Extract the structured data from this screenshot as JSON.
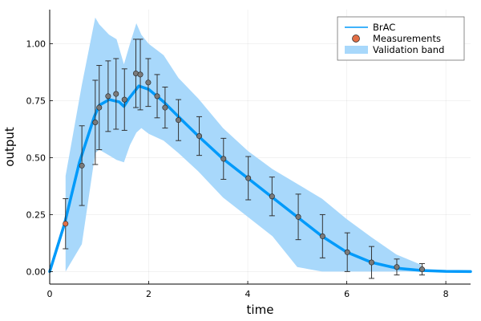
{
  "chart_data": {
    "type": "line",
    "xlabel": "time",
    "ylabel": "output",
    "xlim": [
      0,
      8.5
    ],
    "ylim": [
      -0.055,
      1.15
    ],
    "x_ticks": [
      0,
      2,
      4,
      6,
      8
    ],
    "x_tick_labels": [
      "0",
      "2",
      "4",
      "6",
      "8"
    ],
    "y_ticks": [
      0.0,
      0.25,
      0.5,
      0.75,
      1.0
    ],
    "y_tick_labels": [
      "0.00",
      "0.25",
      "0.50",
      "0.75",
      "1.00"
    ],
    "grid": true,
    "legend_position": "top-right",
    "colors": {
      "line": "#009AFA",
      "band": "#A8D8FB",
      "marker_first": "#E26F46",
      "marker": "#7A7A7A",
      "errorbar": "#333333"
    },
    "series": [
      {
        "name": "BrAC",
        "kind": "line",
        "x": [
          0,
          0.3,
          0.6,
          0.9,
          1.0,
          1.2,
          1.4,
          1.5,
          1.6,
          1.8,
          2.0,
          2.3,
          2.6,
          3.0,
          3.5,
          4.0,
          4.5,
          5.0,
          5.5,
          6.0,
          6.5,
          7.0,
          7.5,
          8.0,
          8.5
        ],
        "y": [
          0.0,
          0.21,
          0.48,
          0.68,
          0.73,
          0.755,
          0.745,
          0.725,
          0.76,
          0.815,
          0.8,
          0.745,
          0.68,
          0.595,
          0.495,
          0.41,
          0.325,
          0.24,
          0.155,
          0.085,
          0.04,
          0.015,
          0.005,
          0.001,
          0.0
        ]
      },
      {
        "name": "Measurements",
        "kind": "scatter",
        "x": [
          0.32,
          0.65,
          0.92,
          1.0,
          1.18,
          1.34,
          1.51,
          1.74,
          1.83,
          1.99,
          2.17,
          2.33,
          2.6,
          3.02,
          3.51,
          4.01,
          4.49,
          5.02,
          5.51,
          6.01,
          6.5,
          7.01,
          7.52
        ],
        "y": [
          0.21,
          0.465,
          0.655,
          0.72,
          0.77,
          0.78,
          0.755,
          0.87,
          0.865,
          0.83,
          0.77,
          0.72,
          0.665,
          0.595,
          0.495,
          0.41,
          0.33,
          0.24,
          0.155,
          0.085,
          0.04,
          0.02,
          0.01
        ],
        "err": [
          0.11,
          0.175,
          0.185,
          0.185,
          0.155,
          0.155,
          0.135,
          0.15,
          0.155,
          0.105,
          0.095,
          0.09,
          0.09,
          0.085,
          0.09,
          0.095,
          0.085,
          0.1,
          0.095,
          0.085,
          0.07,
          0.035,
          0.025
        ]
      },
      {
        "name": "Validation band",
        "kind": "band",
        "x": [
          0.32,
          0.65,
          0.92,
          1.0,
          1.2,
          1.35,
          1.5,
          1.62,
          1.75,
          1.85,
          2.0,
          2.3,
          2.6,
          3.0,
          3.5,
          4.0,
          4.5,
          5.0,
          5.5,
          6.0,
          6.5,
          7.0,
          7.5
        ],
        "lower": [
          0.0,
          0.12,
          0.52,
          0.535,
          0.51,
          0.49,
          0.48,
          0.555,
          0.61,
          0.63,
          0.605,
          0.575,
          0.52,
          0.44,
          0.325,
          0.24,
          0.155,
          0.02,
          0.0,
          0.0,
          0.0,
          0.0,
          0.0
        ],
        "upper": [
          0.42,
          0.82,
          1.115,
          1.085,
          1.04,
          1.02,
          0.91,
          1.0,
          1.09,
          1.04,
          1.0,
          0.95,
          0.85,
          0.76,
          0.63,
          0.53,
          0.45,
          0.385,
          0.32,
          0.23,
          0.15,
          0.075,
          0.03
        ]
      }
    ]
  }
}
